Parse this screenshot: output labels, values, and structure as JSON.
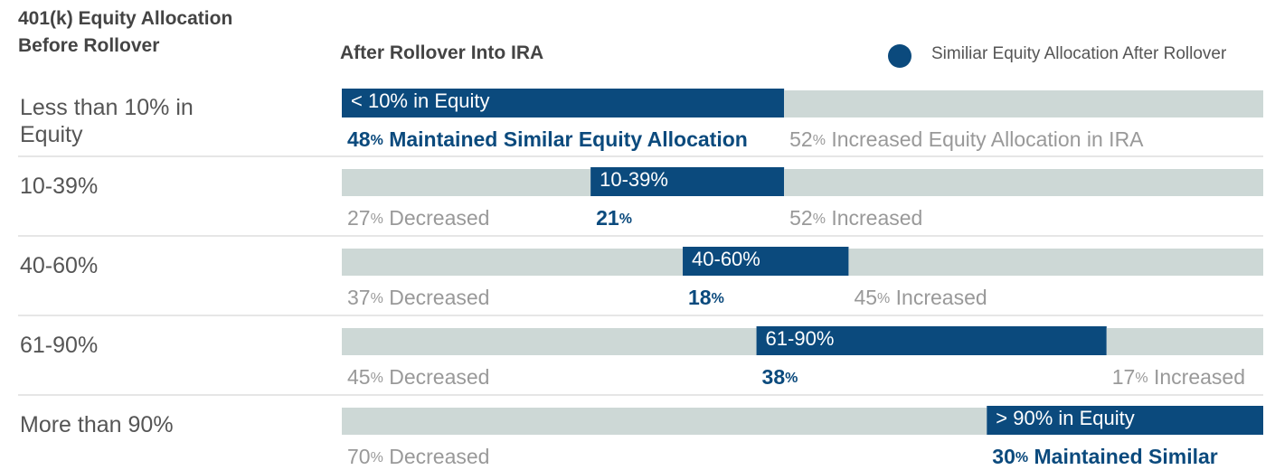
{
  "chart_data": {
    "type": "stacked-bar",
    "row_header": "401(k) Equity Allocation Before Rollover",
    "column_header": "After Rollover Into IRA",
    "legend": "Similiar Equity Allocation After Rollover",
    "categories": [
      "Less than 10% in Equity",
      "10-39%",
      "40-60%",
      "61-90%",
      "More than 90%"
    ],
    "bar_labels": [
      "< 10% in Equity",
      "10-39%",
      "40-60%",
      "61-90%",
      "> 90% in Equity"
    ],
    "xlim": [
      0,
      100
    ],
    "series": [
      {
        "color": "#cdd8d6",
        "text_color": "#999999",
        "values": [
          null,
          27,
          37,
          45,
          70
        ],
        "value_labels": [
          null,
          "27% Decreased",
          "37% Decreased",
          "45% Decreased",
          "70% Decreased"
        ]
      },
      {
        "color": "#0b4a7d",
        "text_color": "#0b4a7d",
        "values": [
          48,
          21,
          18,
          38,
          30
        ],
        "value_labels": [
          "48% Maintained Similar Equity Allocation",
          "21%",
          "18%",
          "38%",
          "30% Maintained Similar"
        ]
      },
      {
        "color": "#cdd8d6",
        "text_color": "#999999",
        "values": [
          52,
          52,
          45,
          17,
          null
        ],
        "value_labels": [
          "52% Increased Equity Allocation in IRA",
          "52% Increased",
          "45% Increased",
          "17% Increased",
          null
        ]
      }
    ]
  }
}
